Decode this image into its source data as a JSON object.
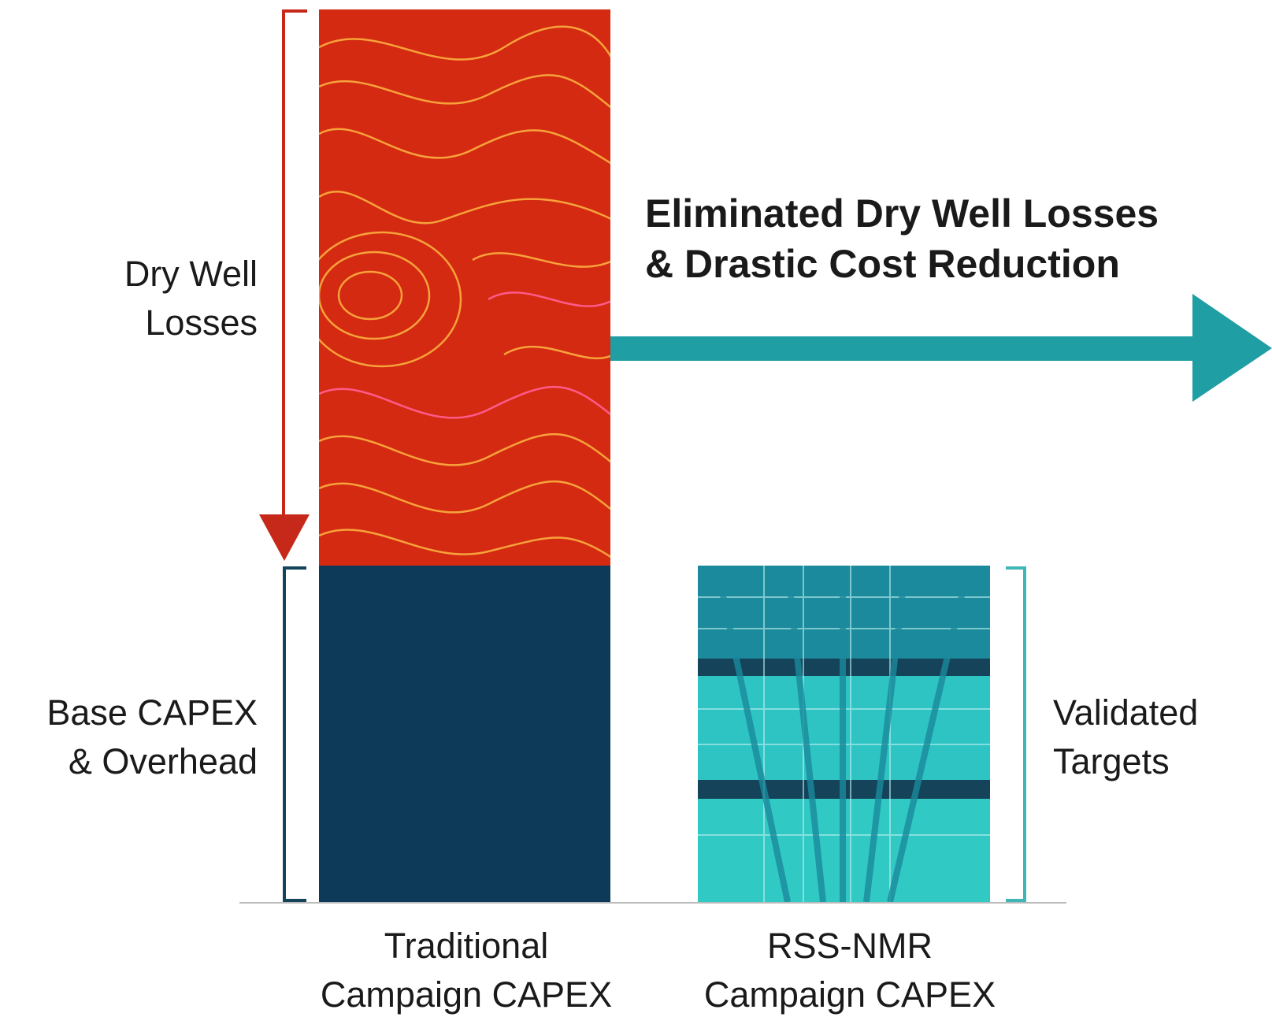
{
  "title": [
    "Eliminated Dry Well Losses",
    "& Drastic Cost Reduction"
  ],
  "dry_well_losses": [
    "Dry Well",
    "Losses"
  ],
  "base_capex": [
    "Base CAPEX",
    "& Overhead"
  ],
  "validated_targets": [
    "Validated",
    "Targets"
  ],
  "bars": [
    {
      "label": [
        "Traditional",
        "Campaign CAPEX"
      ]
    },
    {
      "label": [
        "RSS-NMR",
        "Campaign CAPEX"
      ]
    }
  ]
}
